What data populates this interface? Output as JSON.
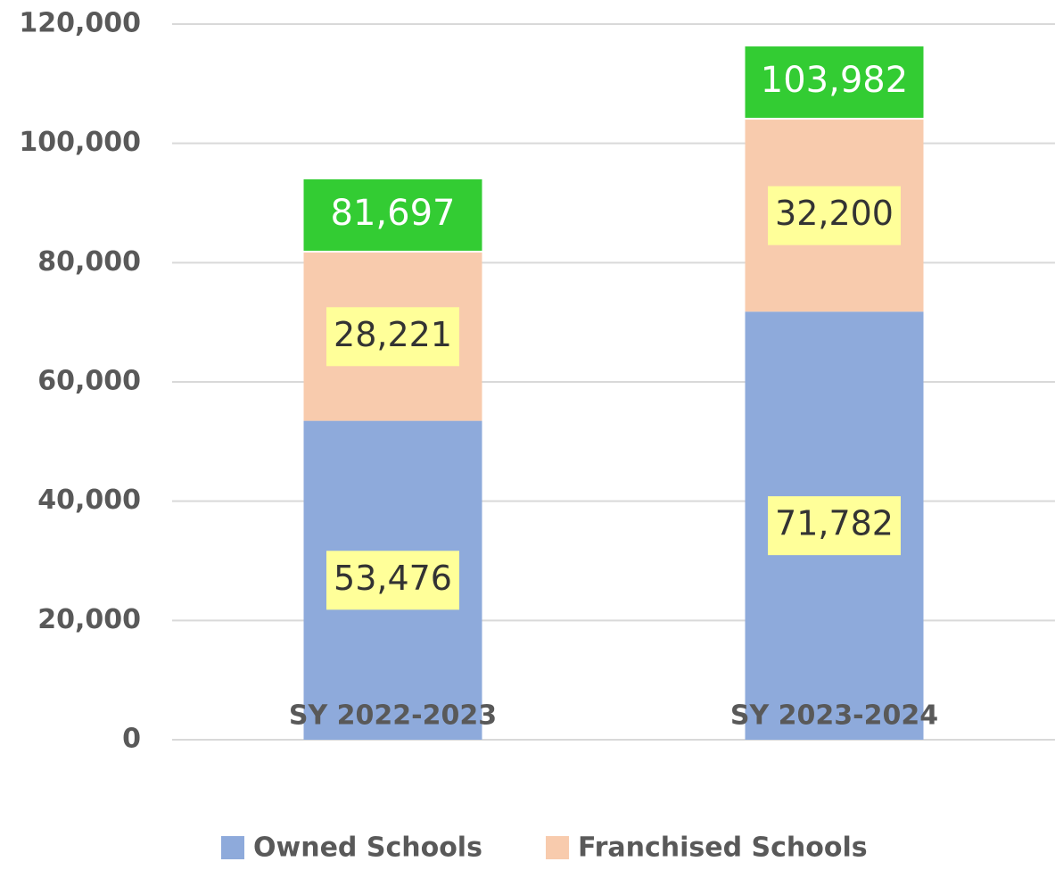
{
  "chart_data": {
    "type": "stacked_bar",
    "categories": [
      "SY 2022-2023",
      "SY 2023-2024"
    ],
    "series": [
      {
        "name": "Owned Schools",
        "color": "#8eaadb",
        "values": [
          53476,
          71782
        ],
        "value_labels": [
          "53,476",
          "71,782"
        ]
      },
      {
        "name": "Franchised Schools",
        "color": "#f8cbad",
        "values": [
          28221,
          32200
        ],
        "value_labels": [
          "28,221",
          "32,200"
        ]
      }
    ],
    "totals": [
      81697,
      103982
    ],
    "total_labels": [
      "81,697",
      "103,982"
    ],
    "ylim": [
      0,
      120000
    ],
    "yticks": [
      0,
      {
        "value": 20000,
        "label": "20,000"
      },
      {
        "value": 40000,
        "label": "40,000"
      },
      {
        "value": 60000,
        "label": "60,000"
      },
      {
        "value": 80000,
        "label": "80,000"
      },
      {
        "value": 100000,
        "label": "100,000"
      },
      {
        "value": 120000,
        "label": "120,000"
      }
    ],
    "grid": true,
    "legend": "bottom"
  }
}
